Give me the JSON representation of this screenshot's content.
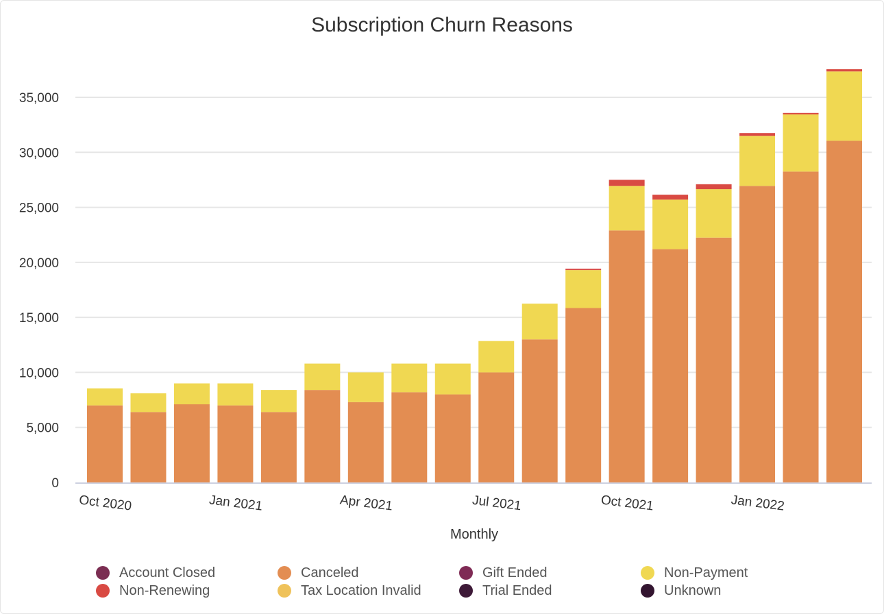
{
  "chart_data": {
    "type": "bar",
    "stacked": true,
    "title": "Subscription Churn Reasons",
    "xlabel": "Monthly",
    "ylabel": "",
    "ylim": [
      0,
      37500
    ],
    "yticks": [
      0,
      5000,
      10000,
      15000,
      20000,
      25000,
      30000,
      35000
    ],
    "ytick_labels": [
      "0",
      "5,000",
      "10,000",
      "15,000",
      "20,000",
      "25,000",
      "30,000",
      "35,000"
    ],
    "grid": true,
    "legend_position": "bottom",
    "categories": [
      "Oct 2020",
      "Nov 2020",
      "Dec 2020",
      "Jan 2021",
      "Feb 2021",
      "Mar 2021",
      "Apr 2021",
      "May 2021",
      "Jun 2021",
      "Jul 2021",
      "Aug 2021",
      "Sep 2021",
      "Oct 2021",
      "Nov 2021",
      "Dec 2021",
      "Jan 2022",
      "Feb 2022",
      "Mar 2022"
    ],
    "xtick_labels": [
      {
        "index": 0,
        "label": "Oct 2020"
      },
      {
        "index": 3,
        "label": "Jan 2021"
      },
      {
        "index": 6,
        "label": "Apr 2021"
      },
      {
        "index": 9,
        "label": "Jul 2021"
      },
      {
        "index": 12,
        "label": "Oct 2021"
      },
      {
        "index": 15,
        "label": "Jan 2022"
      }
    ],
    "series": [
      {
        "name": "Account Closed",
        "color": "#7b2d52",
        "values": [
          0,
          0,
          0,
          0,
          0,
          0,
          0,
          0,
          0,
          0,
          0,
          0,
          0,
          0,
          0,
          0,
          0,
          0
        ]
      },
      {
        "name": "Canceled",
        "color": "#e38d52",
        "values": [
          7000,
          6400,
          7100,
          7000,
          6400,
          8400,
          7300,
          8200,
          8000,
          10000,
          13000,
          15850,
          22900,
          21200,
          22250,
          26950,
          28250,
          31050
        ]
      },
      {
        "name": "Gift Ended",
        "color": "#7f2b55",
        "values": [
          0,
          0,
          0,
          0,
          0,
          0,
          0,
          0,
          0,
          0,
          0,
          0,
          0,
          0,
          0,
          0,
          0,
          0
        ]
      },
      {
        "name": "Non-Payment",
        "color": "#f0d852",
        "values": [
          1550,
          1700,
          1900,
          2000,
          2000,
          2400,
          2700,
          2600,
          2800,
          2850,
          3250,
          3450,
          4050,
          4500,
          4400,
          4550,
          5200,
          6300
        ]
      },
      {
        "name": "Non-Renewing",
        "color": "#d94a43",
        "values": [
          0,
          0,
          0,
          0,
          0,
          0,
          0,
          0,
          0,
          0,
          0,
          120,
          550,
          450,
          450,
          250,
          130,
          200
        ]
      },
      {
        "name": "Tax Location Invalid",
        "color": "#efc25a",
        "values": [
          0,
          0,
          0,
          0,
          0,
          0,
          0,
          0,
          0,
          0,
          0,
          0,
          0,
          0,
          0,
          0,
          0,
          0
        ]
      },
      {
        "name": "Trial Ended",
        "color": "#3e1a38",
        "values": [
          0,
          0,
          0,
          0,
          0,
          0,
          0,
          0,
          0,
          0,
          0,
          0,
          0,
          0,
          0,
          0,
          0,
          0
        ]
      },
      {
        "name": "Unknown",
        "color": "#331530",
        "values": [
          0,
          0,
          0,
          0,
          0,
          0,
          0,
          0,
          0,
          0,
          0,
          0,
          0,
          0,
          0,
          0,
          0,
          0
        ]
      }
    ]
  }
}
